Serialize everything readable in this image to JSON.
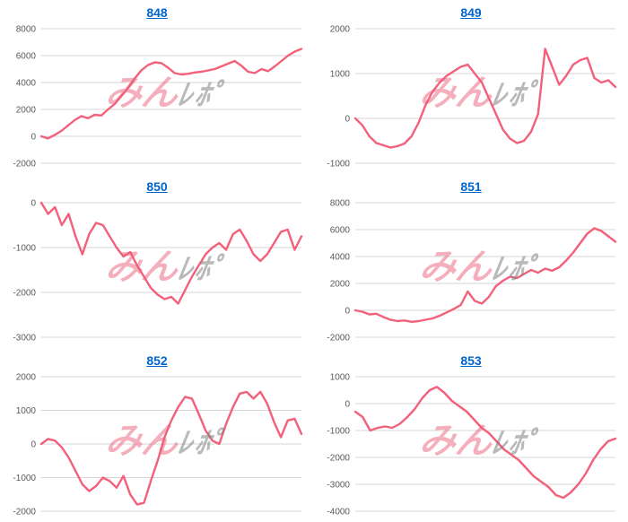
{
  "colors": {
    "line": "#f2607a",
    "grid": "#d6d6d6",
    "tick_label": "#595959",
    "link": "#0066cc",
    "watermark_pink": "#ec5f7a",
    "watermark_gray": "#808080"
  },
  "watermark": {
    "part1": "みん",
    "part2": "ﾚﾎﾟ"
  },
  "chart_data": [
    {
      "type": "line",
      "title": "848",
      "ylim": [
        -2000,
        8000
      ],
      "yticks": [
        8000,
        6000,
        4000,
        2000,
        0,
        -2000
      ],
      "xlabel": "",
      "ylabel": "",
      "grid": "horizontal",
      "legend": "none",
      "values": [
        0,
        -150,
        100,
        400,
        800,
        1200,
        1500,
        1350,
        1600,
        1550,
        2000,
        2400,
        3000,
        3600,
        4300,
        4900,
        5300,
        5500,
        5450,
        5100,
        4700,
        4600,
        4650,
        4750,
        4800,
        4900,
        5000,
        5200,
        5400,
        5600,
        5250,
        4800,
        4700,
        5000,
        4850,
        5200,
        5600,
        6000,
        6300,
        6500
      ]
    },
    {
      "type": "line",
      "title": "849",
      "ylim": [
        -1000,
        2000
      ],
      "yticks": [
        2000,
        1000,
        0,
        -1000
      ],
      "xlabel": "",
      "ylabel": "",
      "grid": "horizontal",
      "legend": "none",
      "values": [
        0,
        -150,
        -400,
        -550,
        -600,
        -650,
        -620,
        -560,
        -400,
        -100,
        300,
        600,
        800,
        950,
        1050,
        1150,
        1200,
        1000,
        800,
        450,
        100,
        -250,
        -450,
        -550,
        -500,
        -300,
        100,
        1550,
        1150,
        750,
        950,
        1200,
        1300,
        1350,
        900,
        800,
        850,
        700
      ]
    },
    {
      "type": "line",
      "title": "850",
      "ylim": [
        -3000,
        0
      ],
      "yticks": [
        0,
        -1000,
        -2000,
        -3000
      ],
      "xlabel": "",
      "ylabel": "",
      "grid": "horizontal",
      "legend": "none",
      "values": [
        0,
        -250,
        -100,
        -500,
        -250,
        -750,
        -1150,
        -700,
        -450,
        -500,
        -750,
        -1000,
        -1200,
        -1100,
        -1400,
        -1650,
        -1900,
        -2050,
        -2150,
        -2100,
        -2250,
        -1950,
        -1650,
        -1400,
        -1150,
        -1000,
        -900,
        -1050,
        -700,
        -600,
        -850,
        -1150,
        -1300,
        -1150,
        -900,
        -650,
        -600,
        -1050,
        -750
      ]
    },
    {
      "type": "line",
      "title": "851",
      "ylim": [
        -2000,
        8000
      ],
      "yticks": [
        8000,
        6000,
        4000,
        2000,
        0,
        -2000
      ],
      "xlabel": "",
      "ylabel": "",
      "grid": "horizontal",
      "legend": "none",
      "values": [
        0,
        -100,
        -300,
        -250,
        -500,
        -700,
        -800,
        -750,
        -850,
        -800,
        -700,
        -600,
        -400,
        -150,
        100,
        400,
        1400,
        700,
        500,
        1000,
        1800,
        2200,
        2500,
        2400,
        2700,
        3000,
        2800,
        3100,
        2950,
        3200,
        3700,
        4300,
        5000,
        5700,
        6100,
        5900,
        5500,
        5100
      ]
    },
    {
      "type": "line",
      "title": "852",
      "ylim": [
        -2000,
        2000
      ],
      "yticks": [
        2000,
        1000,
        0,
        -1000,
        -2000
      ],
      "xlabel": "",
      "ylabel": "",
      "grid": "horizontal",
      "legend": "none",
      "values": [
        0,
        150,
        100,
        -100,
        -400,
        -800,
        -1200,
        -1400,
        -1250,
        -1000,
        -1100,
        -1300,
        -950,
        -1500,
        -1800,
        -1750,
        -1100,
        -500,
        200,
        700,
        1100,
        1400,
        1350,
        900,
        400,
        100,
        0,
        600,
        1100,
        1500,
        1550,
        1350,
        1550,
        1200,
        650,
        200,
        700,
        750,
        300
      ]
    },
    {
      "type": "line",
      "title": "853",
      "ylim": [
        -4000,
        1000
      ],
      "yticks": [
        1000,
        0,
        -1000,
        -2000,
        -3000,
        -4000
      ],
      "xlabel": "",
      "ylabel": "",
      "grid": "horizontal",
      "legend": "none",
      "values": [
        -300,
        -500,
        -1000,
        -900,
        -850,
        -900,
        -750,
        -500,
        -200,
        200,
        500,
        620,
        400,
        100,
        -100,
        -300,
        -600,
        -900,
        -1100,
        -1400,
        -1700,
        -1900,
        -2100,
        -2400,
        -2700,
        -2900,
        -3100,
        -3400,
        -3500,
        -3300,
        -3000,
        -2600,
        -2100,
        -1700,
        -1400,
        -1300
      ]
    }
  ]
}
